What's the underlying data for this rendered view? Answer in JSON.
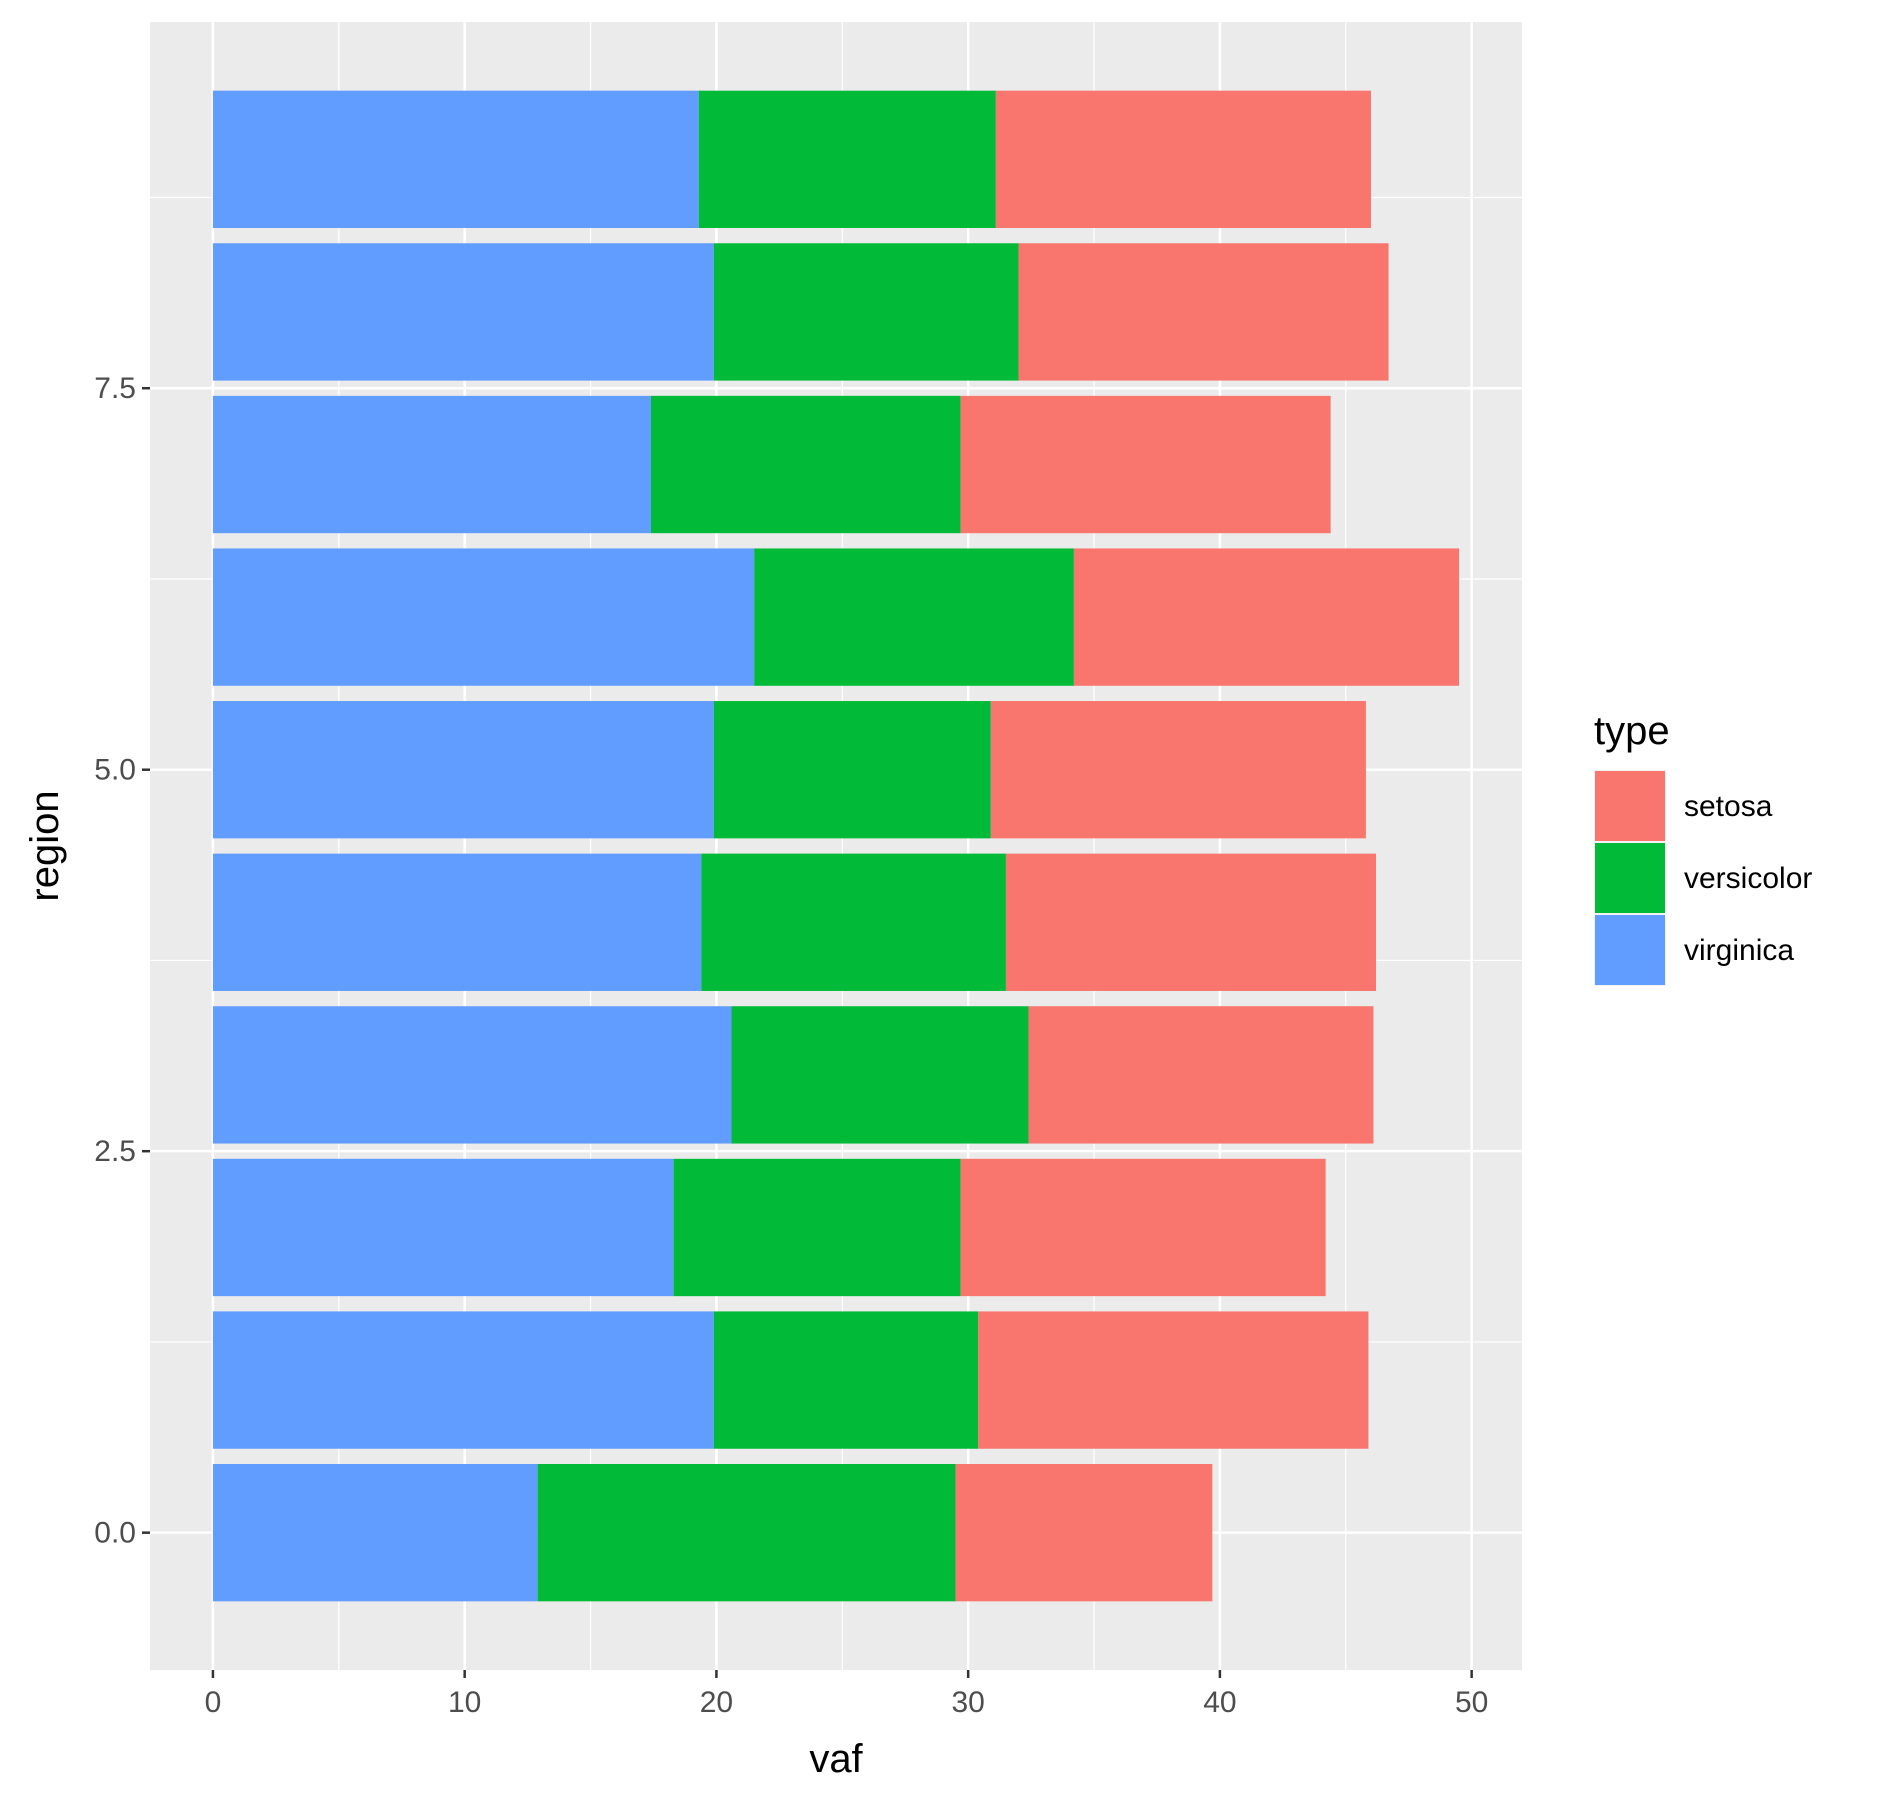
{
  "chart_data": {
    "type": "bar",
    "orientation": "horizontal",
    "stacked": true,
    "xlabel": "vaf",
    "ylabel": "region",
    "xlim": [
      -2.5,
      52
    ],
    "ylim": [
      -0.9,
      9.9
    ],
    "x_ticks": [
      0,
      10,
      20,
      30,
      40,
      50
    ],
    "x_tick_labels": [
      "0",
      "10",
      "20",
      "30",
      "40",
      "50"
    ],
    "y_ticks": [
      0,
      2.5,
      5,
      7.5
    ],
    "y_tick_labels": [
      "0.0",
      "2.5",
      "5.0",
      "7.5"
    ],
    "categories": [
      0,
      1,
      2,
      3,
      4,
      5,
      6,
      7,
      8,
      9
    ],
    "series": [
      {
        "name": "virginica",
        "color": "#619CFF",
        "values": [
          12.9,
          19.9,
          18.3,
          20.6,
          19.4,
          19.9,
          21.5,
          17.4,
          19.9,
          19.3
        ]
      },
      {
        "name": "versicolor",
        "color": "#00BA38",
        "values": [
          16.6,
          10.5,
          11.4,
          11.8,
          12.1,
          11.0,
          12.7,
          12.3,
          12.1,
          11.8
        ]
      },
      {
        "name": "setosa",
        "color": "#F8766D",
        "values": [
          10.2,
          15.5,
          14.5,
          13.7,
          14.7,
          14.9,
          15.3,
          14.7,
          14.7,
          14.9
        ]
      }
    ],
    "legend": {
      "title": "type",
      "position": "right",
      "items": [
        "setosa",
        "versicolor",
        "virginica"
      ]
    },
    "grid": true,
    "panel_background": "#EBEBEB",
    "grid_color": "#FFFFFF"
  }
}
